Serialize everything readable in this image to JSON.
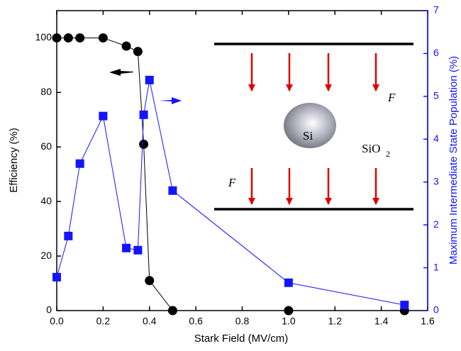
{
  "chart_data": {
    "type": "line",
    "xlabel": "Stark Field (MV/cm)",
    "ylabel": "Efficiency (%)",
    "y2label": "Maximum Intermediate State Population (%)",
    "x": [
      0,
      0.05,
      0.1,
      0.2,
      0.3,
      0.35,
      0.375,
      0.4,
      0.5,
      1.0,
      1.5
    ],
    "series": [
      {
        "name": "Efficiency",
        "color": "#000000",
        "marker": "circle",
        "axis": "y",
        "values": [
          100,
          100,
          100,
          100,
          97,
          95,
          61,
          11,
          0,
          0,
          0
        ]
      },
      {
        "name": "Maximum Intermediate State Population",
        "color": "#1414ff",
        "marker": "square",
        "axis": "y2",
        "values": [
          0.78,
          1.74,
          3.43,
          4.54,
          1.46,
          1.41,
          4.57,
          5.38,
          2.8,
          0.65,
          0.13
        ]
      }
    ],
    "xlim": [
      0,
      1.6
    ],
    "xticks": [
      {
        "value": 0,
        "label": "0.0"
      },
      0.2,
      0.4,
      0.6,
      0.8,
      {
        "value": 1,
        "label": "1.0"
      },
      1.2,
      1.4,
      1.6
    ],
    "ylim": [
      0,
      110
    ],
    "yticks": [
      0,
      20,
      40,
      60,
      80,
      100
    ],
    "y2lim": [
      0,
      7
    ],
    "y2ticks": [
      0,
      1,
      2,
      3,
      4,
      5,
      6,
      7
    ],
    "annotations": {
      "field_top": "F",
      "field_bottom": "F",
      "particle": "Si",
      "matrix": "SiO",
      "matrix_sub": "2"
    }
  }
}
